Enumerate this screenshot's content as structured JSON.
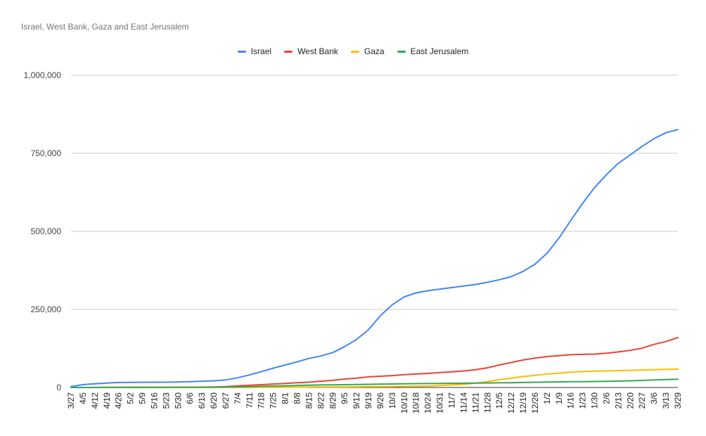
{
  "chart_data": {
    "type": "line",
    "title": "Israel, West Bank, Gaza and East Jerusalem",
    "xlabel": "",
    "ylabel": "",
    "ylim": [
      0,
      1000000
    ],
    "y_ticks": [
      "0",
      "250,000",
      "500,000",
      "750,000",
      "1,000,000"
    ],
    "y_tick_values": [
      0,
      250000,
      500000,
      750000,
      1000000
    ],
    "legend_position": "top",
    "gridlines": true,
    "categories": [
      "3/27",
      "4/5",
      "4/12",
      "4/19",
      "4/26",
      "5/2",
      "5/9",
      "5/16",
      "5/23",
      "5/30",
      "6/6",
      "6/13",
      "6/20",
      "6/27",
      "7/4",
      "7/11",
      "7/18",
      "7/25",
      "8/1",
      "8/8",
      "8/15",
      "8/22",
      "8/29",
      "9/5",
      "9/12",
      "9/19",
      "9/26",
      "10/3",
      "10/10",
      "10/18",
      "10/24",
      "10/31",
      "11/7",
      "11/14",
      "11/21",
      "11/28",
      "12/5",
      "12/12",
      "12/19",
      "12/26",
      "1/2",
      "1/9",
      "1/16",
      "1/23",
      "1/30",
      "2/6",
      "2/13",
      "2/20",
      "2/27",
      "3/6",
      "3/13",
      "3/29"
    ],
    "series": [
      {
        "name": "Israel",
        "color": "#4285f4",
        "values": [
          3000,
          9000,
          12000,
          14000,
          16000,
          16500,
          16700,
          16800,
          17000,
          17500,
          18500,
          20000,
          21500,
          24000,
          31000,
          40000,
          51000,
          62000,
          72000,
          82000,
          93000,
          101000,
          112000,
          131000,
          154000,
          185000,
          230000,
          265000,
          290000,
          303000,
          310000,
          315000,
          320000,
          325000,
          330000,
          337000,
          345000,
          355000,
          372000,
          395000,
          430000,
          478000,
          535000,
          590000,
          640000,
          682000,
          718000,
          745000,
          772000,
          797000,
          816000,
          826000
        ]
      },
      {
        "name": "West Bank",
        "color": "#ea4335",
        "values": [
          0,
          100,
          200,
          300,
          400,
          500,
          500,
          600,
          700,
          800,
          900,
          1200,
          1800,
          3000,
          5000,
          7000,
          9000,
          11000,
          13000,
          15000,
          17000,
          20000,
          23000,
          27000,
          30000,
          34000,
          36000,
          38000,
          41000,
          43000,
          45000,
          48000,
          50000,
          53000,
          57000,
          63000,
          72000,
          80000,
          88000,
          94000,
          99000,
          102000,
          105000,
          106000,
          107000,
          110000,
          114000,
          119000,
          126000,
          138000,
          147000,
          160000
        ]
      },
      {
        "name": "Gaza",
        "color": "#fbbc04",
        "values": [
          0,
          20,
          50,
          70,
          80,
          100,
          120,
          150,
          180,
          200,
          250,
          300,
          400,
          500,
          600,
          700,
          800,
          900,
          1000,
          1100,
          1300,
          1500,
          1700,
          2000,
          2300,
          2600,
          2900,
          3200,
          3500,
          3900,
          4500,
          6000,
          8000,
          10000,
          14000,
          19000,
          25000,
          30000,
          35000,
          39000,
          43000,
          46000,
          49000,
          51000,
          52000,
          53000,
          54000,
          55000,
          56000,
          57000,
          58000,
          59000
        ]
      },
      {
        "name": "East Jerusalem",
        "color": "#34a853",
        "values": [
          0,
          50,
          100,
          150,
          200,
          250,
          300,
          350,
          400,
          500,
          600,
          700,
          900,
          1200,
          1800,
          2500,
          3500,
          4500,
          5500,
          6500,
          7300,
          8000,
          8500,
          9000,
          9600,
          10200,
          10800,
          11300,
          11800,
          12300,
          12700,
          13000,
          13300,
          13600,
          14000,
          14400,
          14900,
          15400,
          16000,
          16700,
          17300,
          17900,
          18400,
          18800,
          19200,
          19800,
          20600,
          21500,
          22600,
          24000,
          25200,
          26500
        ]
      }
    ]
  }
}
